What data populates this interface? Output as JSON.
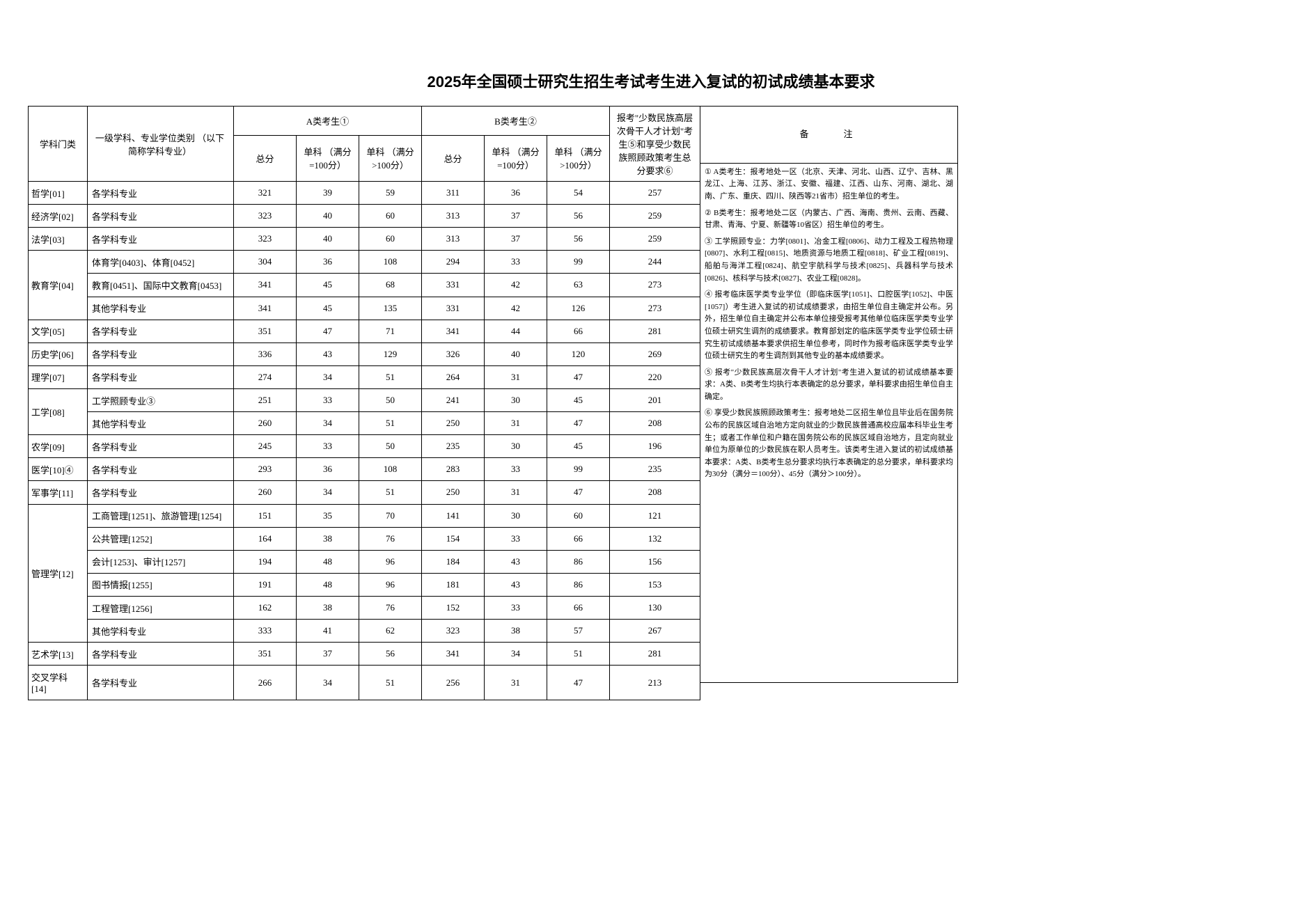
{
  "title": "2025年全国硕士研究生招生考试考生进入复试的初试成绩基本要求",
  "headers": {
    "category": "学科门类",
    "major": "一级学科、专业学位类别\n（以下简称学科专业）",
    "groupA": "A类考生①",
    "groupB": "B类考生②",
    "total": "总分",
    "single100": "单科\n（满分=100分）",
    "singleOver100": "单科\n（满分>100分）",
    "minority": "报考\"少数民族高层次骨干人才计划\"考生⑤和享受少数民族照顾政策考生总分要求⑥",
    "notes": "备　　注"
  },
  "rows": [
    {
      "cat": "哲学[01]",
      "major": "各学科专业",
      "a_total": 321,
      "a_s100": 39,
      "a_so100": 59,
      "b_total": 311,
      "b_s100": 36,
      "b_so100": 54,
      "min": 257
    },
    {
      "cat": "经济学[02]",
      "major": "各学科专业",
      "a_total": 323,
      "a_s100": 40,
      "a_so100": 60,
      "b_total": 313,
      "b_s100": 37,
      "b_so100": 56,
      "min": 259
    },
    {
      "cat": "法学[03]",
      "major": "各学科专业",
      "a_total": 323,
      "a_s100": 40,
      "a_so100": 60,
      "b_total": 313,
      "b_s100": 37,
      "b_so100": 56,
      "min": 259
    },
    {
      "cat": "教育学[04]",
      "rowspan": 3,
      "major": "体育学[0403]、体育[0452]",
      "a_total": 304,
      "a_s100": 36,
      "a_so100": 108,
      "b_total": 294,
      "b_s100": 33,
      "b_so100": 99,
      "min": 244
    },
    {
      "major": "教育[0451]、国际中文教育[0453]",
      "a_total": 341,
      "a_s100": 45,
      "a_so100": 68,
      "b_total": 331,
      "b_s100": 42,
      "b_so100": 63,
      "min": 273
    },
    {
      "major": "其他学科专业",
      "a_total": 341,
      "a_s100": 45,
      "a_so100": 135,
      "b_total": 331,
      "b_s100": 42,
      "b_so100": 126,
      "min": 273
    },
    {
      "cat": "文学[05]",
      "major": "各学科专业",
      "a_total": 351,
      "a_s100": 47,
      "a_so100": 71,
      "b_total": 341,
      "b_s100": 44,
      "b_so100": 66,
      "min": 281
    },
    {
      "cat": "历史学[06]",
      "major": "各学科专业",
      "a_total": 336,
      "a_s100": 43,
      "a_so100": 129,
      "b_total": 326,
      "b_s100": 40,
      "b_so100": 120,
      "min": 269
    },
    {
      "cat": "理学[07]",
      "major": "各学科专业",
      "a_total": 274,
      "a_s100": 34,
      "a_so100": 51,
      "b_total": 264,
      "b_s100": 31,
      "b_so100": 47,
      "min": 220
    },
    {
      "cat": "工学[08]",
      "rowspan": 2,
      "major": "工学照顾专业③",
      "a_total": 251,
      "a_s100": 33,
      "a_so100": 50,
      "b_total": 241,
      "b_s100": 30,
      "b_so100": 45,
      "min": 201
    },
    {
      "major": "其他学科专业",
      "a_total": 260,
      "a_s100": 34,
      "a_so100": 51,
      "b_total": 250,
      "b_s100": 31,
      "b_so100": 47,
      "min": 208
    },
    {
      "cat": "农学[09]",
      "major": "各学科专业",
      "a_total": 245,
      "a_s100": 33,
      "a_so100": 50,
      "b_total": 235,
      "b_s100": 30,
      "b_so100": 45,
      "min": 196
    },
    {
      "cat": "医学[10]④",
      "major": "各学科专业",
      "a_total": 293,
      "a_s100": 36,
      "a_so100": 108,
      "b_total": 283,
      "b_s100": 33,
      "b_so100": 99,
      "min": 235
    },
    {
      "cat": "军事学[11]",
      "major": "各学科专业",
      "a_total": 260,
      "a_s100": 34,
      "a_so100": 51,
      "b_total": 250,
      "b_s100": 31,
      "b_so100": 47,
      "min": 208
    },
    {
      "cat": "管理学[12]",
      "rowspan": 6,
      "major": "工商管理[1251]、旅游管理[1254]",
      "a_total": 151,
      "a_s100": 35,
      "a_so100": 70,
      "b_total": 141,
      "b_s100": 30,
      "b_so100": 60,
      "min": 121
    },
    {
      "major": "公共管理[1252]",
      "a_total": 164,
      "a_s100": 38,
      "a_so100": 76,
      "b_total": 154,
      "b_s100": 33,
      "b_so100": 66,
      "min": 132
    },
    {
      "major": "会计[1253]、审计[1257]",
      "a_total": 194,
      "a_s100": 48,
      "a_so100": 96,
      "b_total": 184,
      "b_s100": 43,
      "b_so100": 86,
      "min": 156
    },
    {
      "major": "图书情报[1255]",
      "a_total": 191,
      "a_s100": 48,
      "a_so100": 96,
      "b_total": 181,
      "b_s100": 43,
      "b_so100": 86,
      "min": 153
    },
    {
      "major": "工程管理[1256]",
      "a_total": 162,
      "a_s100": 38,
      "a_so100": 76,
      "b_total": 152,
      "b_s100": 33,
      "b_so100": 66,
      "min": 130
    },
    {
      "major": "其他学科专业",
      "a_total": 333,
      "a_s100": 41,
      "a_so100": 62,
      "b_total": 323,
      "b_s100": 38,
      "b_so100": 57,
      "min": 267
    },
    {
      "cat": "艺术学[13]",
      "major": "各学科专业",
      "a_total": 351,
      "a_s100": 37,
      "a_so100": 56,
      "b_total": 341,
      "b_s100": 34,
      "b_so100": 51,
      "min": 281
    },
    {
      "cat": "交叉学科[14]",
      "major": "各学科专业",
      "a_total": 266,
      "a_s100": 34,
      "a_so100": 51,
      "b_total": 256,
      "b_s100": 31,
      "b_so100": 47,
      "min": 213
    }
  ],
  "notes": [
    "① A类考生：报考地处一区（北京、天津、河北、山西、辽宁、吉林、黑龙江、上海、江苏、浙江、安徽、福建、江西、山东、河南、湖北、湖南、广东、重庆、四川、陕西等21省市）招生单位的考生。",
    "② B类考生：报考地处二区（内蒙古、广西、海南、贵州、云南、西藏、甘肃、青海、宁夏、新疆等10省区）招生单位的考生。",
    "③ 工学照顾专业：力学[0801]、冶金工程[0806]、动力工程及工程热物理[0807]、水利工程[0815]、地质资源与地质工程[0818]、矿业工程[0819]、船舶与海洋工程[0824]、航空宇航科学与技术[0825]、兵器科学与技术[0826]、核科学与技术[0827]、农业工程[0828]。",
    "④ 报考临床医学类专业学位（即临床医学[1051]、口腔医学[1052]、中医[1057]）考生进入复试的初试成绩要求，由招生单位自主确定并公布。另外，招生单位自主确定并公布本单位接受报考其他单位临床医学类专业学位硕士研究生调剂的成绩要求。教育部划定的临床医学类专业学位硕士研究生初试成绩基本要求供招生单位参考，同时作为报考临床医学类专业学位硕士研究生的考生调剂到其他专业的基本成绩要求。",
    "⑤ 报考\"少数民族高层次骨干人才计划\"考生进入复试的初试成绩基本要求：A类、B类考生均执行本表确定的总分要求，单科要求由招生单位自主确定。",
    "⑥ 享受少数民族照顾政策考生：报考地处二区招生单位且毕业后在国务院公布的民族区域自治地方定向就业的少数民族普通高校应届本科毕业生考生；或者工作单位和户籍在国务院公布的民族区域自治地方，且定向就业单位为原单位的少数民族在职人员考生。该类考生进入复试的初试成绩基本要求：A类、B类考生总分要求均执行本表确定的总分要求，单科要求均为30分（满分＝100分）、45分（满分＞100分）。"
  ]
}
